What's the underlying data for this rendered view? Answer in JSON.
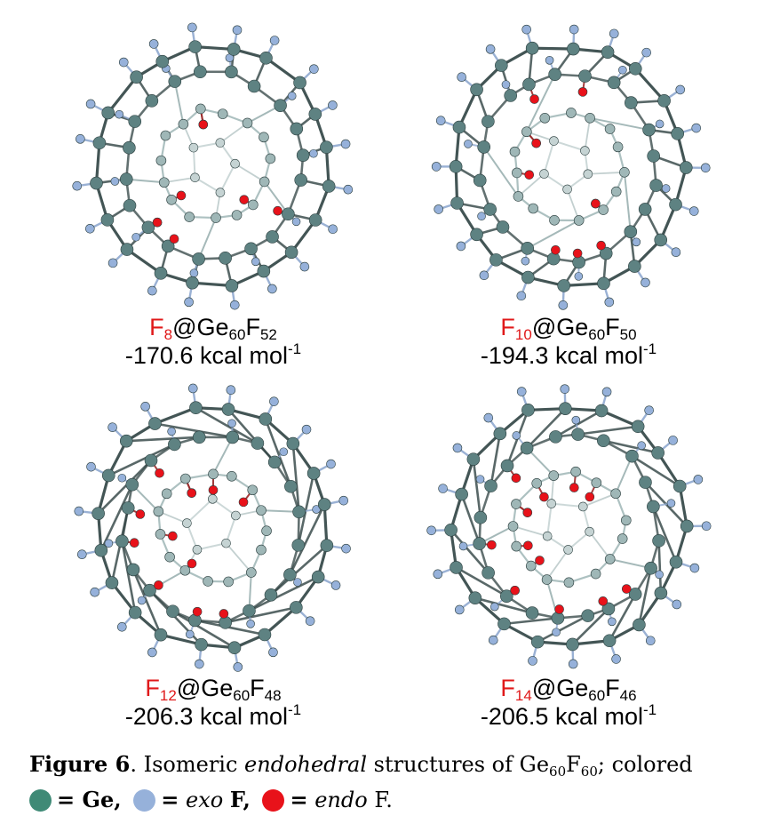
{
  "panels": [
    {
      "endo_symbol": "F",
      "endo_count": "8",
      "cage_prefix": "@Ge",
      "ge_count": "60",
      "exo_symbol": "F",
      "exo_count": "52",
      "energy_value": "-170.6 kcal mol",
      "energy_exp": "-1"
    },
    {
      "endo_symbol": "F",
      "endo_count": "10",
      "cage_prefix": "@Ge",
      "ge_count": "60",
      "exo_symbol": "F",
      "exo_count": "50",
      "energy_value": "-194.3 kcal mol",
      "energy_exp": "-1"
    },
    {
      "endo_symbol": "F",
      "endo_count": "12",
      "cage_prefix": "@Ge",
      "ge_count": "60",
      "exo_symbol": "F",
      "exo_count": "48",
      "energy_value": "-206.3 kcal mol",
      "energy_exp": "-1"
    },
    {
      "endo_symbol": "F",
      "endo_count": "14",
      "cage_prefix": "@Ge",
      "ge_count": "60",
      "exo_symbol": "F",
      "exo_count": "46",
      "energy_value": "-206.5 kcal mol",
      "energy_exp": "-1"
    }
  ],
  "caption": {
    "figure_label": "Figure 6",
    "text_1": ". Isomeric ",
    "text_italic": "endohedral",
    "text_2": " structures of Ge",
    "sub_1": "60",
    "text_3": "F",
    "sub_2": "60",
    "text_4": "; colored",
    "legend_ge": "= Ge,",
    "legend_exo_eq": "=",
    "legend_exo_word": "exo",
    "legend_exo_f": "F,",
    "legend_endo_eq": "=",
    "legend_endo_word": "endo",
    "legend_endo_f": "F."
  },
  "colors": {
    "ge": "#3f8a76",
    "exo_f": "#96b1da",
    "endo_f": "#e8121a",
    "atom_cage": "#5e8282",
    "bond": "#2f4242",
    "formula_red": "#e0191a"
  }
}
